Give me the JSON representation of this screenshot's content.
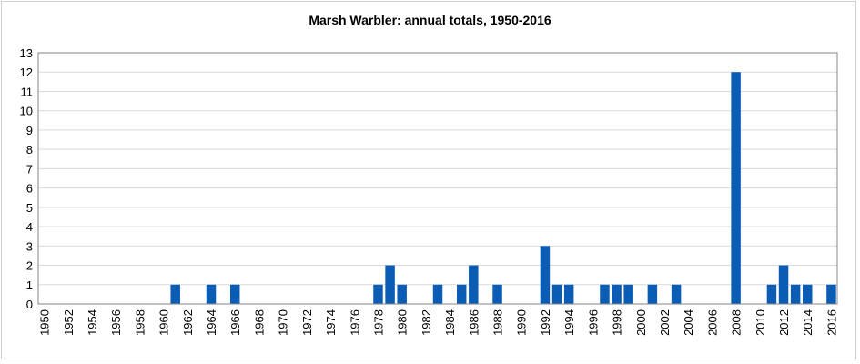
{
  "chart_data": {
    "type": "bar",
    "title": "Marsh Warbler: annual totals, 1950-2016",
    "xlabel": "",
    "ylabel": "",
    "ylim": [
      0,
      13
    ],
    "yticks": [
      0,
      1,
      2,
      3,
      4,
      5,
      6,
      7,
      8,
      9,
      10,
      11,
      12,
      13
    ],
    "grid": true,
    "bar_color": "#0b5cb5",
    "x_tick_labels": [
      "1950",
      "1952",
      "1954",
      "1956",
      "1958",
      "1960",
      "1962",
      "1964",
      "1966",
      "1968",
      "1970",
      "1972",
      "1974",
      "1976",
      "1978",
      "1980",
      "1982",
      "1984",
      "1986",
      "1988",
      "1990",
      "1992",
      "1994",
      "1996",
      "1998",
      "2000",
      "2002",
      "2004",
      "2006",
      "2008",
      "2010",
      "2012",
      "2014",
      "2016"
    ],
    "categories": [
      1950,
      1951,
      1952,
      1953,
      1954,
      1955,
      1956,
      1957,
      1958,
      1959,
      1960,
      1961,
      1962,
      1963,
      1964,
      1965,
      1966,
      1967,
      1968,
      1969,
      1970,
      1971,
      1972,
      1973,
      1974,
      1975,
      1976,
      1977,
      1978,
      1979,
      1980,
      1981,
      1982,
      1983,
      1984,
      1985,
      1986,
      1987,
      1988,
      1989,
      1990,
      1991,
      1992,
      1993,
      1994,
      1995,
      1996,
      1997,
      1998,
      1999,
      2000,
      2001,
      2002,
      2003,
      2004,
      2005,
      2006,
      2007,
      2008,
      2009,
      2010,
      2011,
      2012,
      2013,
      2014,
      2015,
      2016
    ],
    "values": [
      0,
      0,
      0,
      0,
      0,
      0,
      0,
      0,
      0,
      0,
      0,
      1,
      0,
      0,
      1,
      0,
      1,
      0,
      0,
      0,
      0,
      0,
      0,
      0,
      0,
      0,
      0,
      0,
      1,
      2,
      1,
      0,
      0,
      1,
      0,
      1,
      2,
      0,
      1,
      0,
      0,
      0,
      3,
      1,
      1,
      0,
      0,
      1,
      1,
      1,
      0,
      1,
      0,
      1,
      0,
      0,
      0,
      0,
      12,
      0,
      0,
      1,
      2,
      1,
      1,
      0,
      1
    ]
  }
}
